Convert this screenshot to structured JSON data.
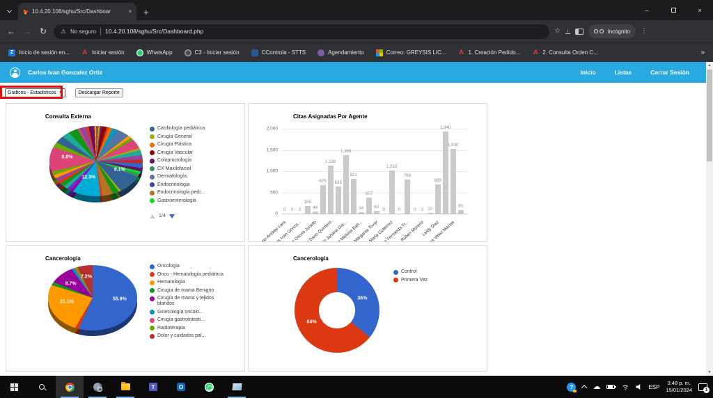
{
  "browser": {
    "tab": {
      "title": "10.4.20.108/sghu/Src/Dashboar"
    },
    "new_tab_label": "+",
    "security_label": "No seguro",
    "url": "10.4.20.108/sghu/Src/Dashboard.php",
    "incognito_label": "Incógnito",
    "bookmarks_overflow": "»",
    "bookmarks": [
      {
        "label": "Inicio de sesión en...",
        "icon": "z-blue",
        "glyph": "Z"
      },
      {
        "label": "Iniciar sesión",
        "icon": "a-red",
        "glyph": "A"
      },
      {
        "label": "WhatsApp",
        "icon": "whatsapp",
        "glyph": ""
      },
      {
        "label": "C3 - Iniciar sesión",
        "icon": "c3",
        "glyph": ""
      },
      {
        "label": "CControla - STTS",
        "icon": "blue-square",
        "glyph": ""
      },
      {
        "label": "Agendamiento",
        "icon": "purple-round",
        "glyph": ""
      },
      {
        "label": "Correo: GREYSIS LIC...",
        "icon": "ms-squares",
        "glyph": ""
      },
      {
        "label": "1. Creación Pedido...",
        "icon": "a-red",
        "glyph": "A"
      },
      {
        "label": "2. Consulta Orden C...",
        "icon": "a-red",
        "glyph": "A"
      }
    ]
  },
  "app": {
    "user_name": "Carlos Ivan Gonzalez Ortiz",
    "nav_links": [
      "Inicio",
      "Listas",
      "Cerrar Sesión"
    ],
    "select_value": "Graficos - Estadisticos",
    "download_button": "Descargar Reporte",
    "header_color": "#29A9E1",
    "annotation_color": "#E80C0C"
  },
  "chart_data": [
    {
      "type": "pie",
      "title": "Consulta Externa",
      "three_d": true,
      "legend_position": "right",
      "legend": [
        {
          "label": "Cardiología pediátrica",
          "color": "#316395"
        },
        {
          "label": "Cirugía General",
          "color": "#AAAA11"
        },
        {
          "label": "Cirugía Plástica",
          "color": "#E67300"
        },
        {
          "label": "Cirugía Vascular",
          "color": "#8B0707"
        },
        {
          "label": "Coloproctología",
          "color": "#651067"
        },
        {
          "label": "CX Maxilofacial",
          "color": "#329262"
        },
        {
          "label": "Dermatología",
          "color": "#5574A6"
        },
        {
          "label": "Endocrinología",
          "color": "#3B3EAC"
        },
        {
          "label": "Endocrinología pedi...",
          "color": "#B77322"
        },
        {
          "label": "Gastroenterología",
          "color": "#16D620"
        }
      ],
      "legend_pagination": {
        "page_label": "1/4",
        "prev_enabled": false,
        "next_enabled": true
      },
      "slices": [
        {
          "v": 0.5,
          "c": "#3366CC"
        },
        {
          "v": 0.6,
          "c": "#DC3912"
        },
        {
          "v": 0.5,
          "c": "#FF9900"
        },
        {
          "v": 0.5,
          "c": "#109618"
        },
        {
          "v": 0.5,
          "c": "#990099"
        },
        {
          "v": 2.2,
          "c": "#8B0707"
        },
        {
          "v": 1.0,
          "c": "#DC3912"
        },
        {
          "v": 1.6,
          "c": "#E67300"
        },
        {
          "v": 2.0,
          "c": "#0099C6"
        },
        {
          "v": 5.0,
          "c": "#5574A6"
        },
        {
          "v": 1.2,
          "c": "#FF9900"
        },
        {
          "v": 1.1,
          "c": "#66AA00"
        },
        {
          "v": 3.6,
          "c": "#DD4477"
        },
        {
          "v": 0.8,
          "c": "#AAAA11"
        },
        {
          "v": 1.8,
          "c": "#22AA99"
        },
        {
          "v": 1.6,
          "c": "#994499"
        },
        {
          "v": 1.4,
          "c": "#B82E2E"
        },
        {
          "v": 1.5,
          "c": "#3366CC"
        },
        {
          "v": 1.2,
          "c": "#651067"
        },
        {
          "v": 1.0,
          "c": "#16D620"
        },
        {
          "v": 1.2,
          "c": "#329262"
        },
        {
          "v": 8.1,
          "c": "#316395",
          "t": "8.1%"
        },
        {
          "v": 0.9,
          "c": "#AAAA11"
        },
        {
          "v": 2.6,
          "c": "#109618"
        },
        {
          "v": 4.6,
          "c": "#B77322"
        },
        {
          "v": 1.0,
          "c": "#DC3912"
        },
        {
          "v": 12.3,
          "c": "#00ACD6",
          "t": "12.3%"
        },
        {
          "v": 1.2,
          "c": "#990099"
        },
        {
          "v": 1.4,
          "c": "#6633CC"
        },
        {
          "v": 1.6,
          "c": "#22AA99"
        },
        {
          "v": 1.5,
          "c": "#109618"
        },
        {
          "v": 1.1,
          "c": "#DC3912"
        },
        {
          "v": 1.5,
          "c": "#994499"
        },
        {
          "v": 1.3,
          "c": "#FF9900"
        },
        {
          "v": 1.3,
          "c": "#66AA00"
        },
        {
          "v": 8.8,
          "c": "#DD4477",
          "t": "8.8%"
        },
        {
          "v": 2.0,
          "c": "#66AA00"
        },
        {
          "v": 3.0,
          "c": "#316395"
        },
        {
          "v": 2.8,
          "c": "#22AA99"
        },
        {
          "v": 3.8,
          "c": "#109618"
        },
        {
          "v": 1.0,
          "c": "#DD4477"
        },
        {
          "v": 2.8,
          "c": "#994499"
        },
        {
          "v": 1.2,
          "c": "#DC3912"
        },
        {
          "v": 2.6,
          "c": "#651067"
        },
        {
          "v": 0.8,
          "c": "#FF9900"
        }
      ]
    },
    {
      "type": "bar",
      "title": "Citas Asignadas Por Agente",
      "bar_color": "#C9CACB",
      "ylim": [
        0,
        2000
      ],
      "ytick_values": [
        0,
        500,
        1000,
        1500,
        2000
      ],
      "ytick_labels": [
        "0",
        "500",
        "1,000",
        "1,500",
        "2,000"
      ],
      "values": [
        0,
        0,
        0,
        185,
        44,
        675,
        1139,
        635,
        1369,
        821,
        34,
        377,
        62,
        0,
        1018,
        0,
        798,
        0,
        0,
        10,
        689,
        1940,
        1530,
        85
      ],
      "value_labels": [
        "0",
        "0",
        "0",
        "185",
        "44",
        "675",
        "1,139",
        "635",
        "1,369",
        "821",
        "34",
        "377",
        "62",
        "0",
        "1,018",
        "0",
        "798",
        "0",
        "0",
        "10",
        "689",
        "1,940",
        "1,530",
        "85"
      ],
      "categories": [
        "Javier Andres Lara",
        "Carlos Ivan Gonza...",
        "Vivian Osorio Jurado",
        "Ivan Dario Quintero",
        "Evelin Johana Gar...",
        "Tania Melissa Bah...",
        "Margarita Tovar",
        "Ana Maria Gutierrez",
        "Maria Fernanda Tr...",
        "Ruben Moreno",
        "Leidy Diaz",
        "Lina Velez Macias"
      ],
      "category_every_n_bars": 2
    },
    {
      "type": "pie",
      "title": "Cancerología",
      "three_d": true,
      "legend_position": "right",
      "legend": [
        {
          "label": "Oncología",
          "color": "#3366CC"
        },
        {
          "label": "Onco - Hematología pediátrica",
          "color": "#DC3912"
        },
        {
          "label": "Hematología",
          "color": "#FF9900"
        },
        {
          "label": "Cirugía de mama Benigno",
          "color": "#109618"
        },
        {
          "label": "Cirugía de mama y tejidos blandos",
          "color": "#990099"
        },
        {
          "label": "Ginecología oncolo...",
          "color": "#0099C6"
        },
        {
          "label": "Cirugía gastrointesti...",
          "color": "#DD4477"
        },
        {
          "label": "Radioterapia",
          "color": "#66AA00"
        },
        {
          "label": "Dolor y cuidados pal...",
          "color": "#B82E2E"
        }
      ],
      "slices": [
        {
          "v": 55.9,
          "c": "#3366CC",
          "t": "55.9%"
        },
        {
          "v": 1.6,
          "c": "#DC3912"
        },
        {
          "v": 21.1,
          "c": "#FF9900",
          "t": "21.1%"
        },
        {
          "v": 1.3,
          "c": "#109618"
        },
        {
          "v": 8.7,
          "c": "#990099",
          "t": "8.7%"
        },
        {
          "v": 1.1,
          "c": "#0099C6"
        },
        {
          "v": 0.6,
          "c": "#DD4477"
        },
        {
          "v": 1.0,
          "c": "#66AA00"
        },
        {
          "v": 7.2,
          "c": "#B82E2E",
          "t": "7.2%"
        }
      ]
    },
    {
      "type": "donut",
      "title": "Cancerología",
      "three_d": false,
      "legend_position": "right",
      "legend": [
        {
          "label": "Control",
          "color": "#3366CC"
        },
        {
          "label": "Primera Vez",
          "color": "#DC3912"
        }
      ],
      "slices": [
        {
          "v": 36,
          "c": "#3366CC",
          "t": "36%"
        },
        {
          "v": 64,
          "c": "#DC3912",
          "t": "64%"
        }
      ]
    }
  ],
  "taskbar": {
    "apps": [
      {
        "id": "chrome",
        "active": true,
        "highlighted": true
      },
      {
        "id": "search-app",
        "active": true,
        "highlighted": false
      },
      {
        "id": "file-explorer",
        "active": true,
        "highlighted": false
      },
      {
        "id": "teams",
        "active": false,
        "highlighted": false,
        "glyph": "T"
      },
      {
        "id": "outlook",
        "active": false,
        "highlighted": false,
        "glyph": "O"
      },
      {
        "id": "whatsapp",
        "active": false,
        "highlighted": false,
        "glyph": ""
      },
      {
        "id": "laptop-app",
        "active": true,
        "highlighted": false,
        "glyph": ""
      }
    ],
    "language": "ESP",
    "time": "3:48 p. m.",
    "date": "15/01/2024",
    "notification_count": "1"
  }
}
